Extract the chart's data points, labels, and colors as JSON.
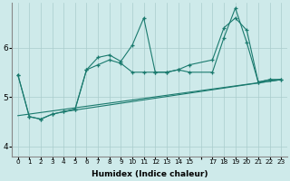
{
  "xlabel": "Humidex (Indice chaleur)",
  "background_color": "#ceeaea",
  "grid_color": "#aacccc",
  "line_color": "#1a7a6e",
  "xlim": [
    -0.5,
    23.5
  ],
  "ylim": [
    3.8,
    6.9
  ],
  "yticks": [
    4,
    5,
    6
  ],
  "xtick_labels": [
    "0",
    "1",
    "2",
    "3",
    "4",
    "5",
    "6",
    "7",
    "8",
    "9",
    "10",
    "11",
    "12",
    "13",
    "14",
    "15",
    "",
    "17",
    "18",
    "19",
    "20",
    "21",
    "22",
    "23"
  ],
  "xtick_positions": [
    0,
    1,
    2,
    3,
    4,
    5,
    6,
    7,
    8,
    9,
    10,
    11,
    12,
    13,
    14,
    15,
    16,
    17,
    18,
    19,
    20,
    21,
    22,
    23
  ],
  "series": [
    {
      "x": [
        0,
        1,
        2,
        3,
        4,
        5,
        6,
        7,
        8,
        9,
        10,
        11,
        12,
        13,
        14,
        15,
        17,
        18,
        19,
        20,
        21,
        22,
        23
      ],
      "y": [
        5.45,
        4.6,
        4.55,
        4.65,
        4.7,
        4.75,
        5.55,
        5.8,
        5.85,
        5.72,
        6.05,
        6.6,
        5.5,
        5.5,
        5.55,
        5.5,
        5.5,
        6.2,
        6.8,
        6.1,
        5.3,
        5.35,
        5.35
      ],
      "marker": true
    },
    {
      "x": [
        0,
        1,
        2,
        3,
        4,
        5,
        6,
        7,
        8,
        9,
        10,
        11,
        12,
        13,
        14,
        15,
        17,
        18,
        19,
        20,
        21,
        22,
        23
      ],
      "y": [
        5.45,
        4.6,
        4.55,
        4.65,
        4.7,
        4.75,
        5.55,
        5.65,
        5.75,
        5.68,
        5.5,
        5.5,
        5.5,
        5.5,
        5.55,
        5.65,
        5.75,
        6.4,
        6.6,
        6.35,
        5.3,
        5.35,
        5.35
      ],
      "marker": true
    },
    {
      "x": [
        0,
        23
      ],
      "y": [
        4.62,
        5.35
      ],
      "marker": false
    },
    {
      "x": [
        4,
        23
      ],
      "y": [
        4.7,
        5.35
      ],
      "marker": false
    }
  ]
}
